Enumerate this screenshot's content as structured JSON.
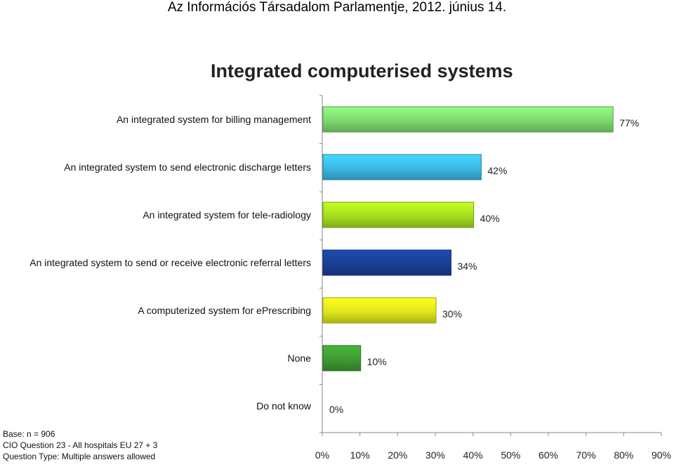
{
  "header": {
    "title": "Az Információs Társadalom Parlamentje, 2012. június 14."
  },
  "chart_data": {
    "type": "bar",
    "orientation": "horizontal",
    "title": "Integrated computerised systems",
    "categories": [
      "An integrated system for billing management",
      "An integrated system to send electronic discharge letters",
      "An integrated system for tele-radiology",
      "An integrated system to send or receive electronic referral letters",
      "A computerized system for ePrescribing",
      "None",
      "Do not know"
    ],
    "values": [
      77,
      42,
      40,
      34,
      30,
      10,
      0
    ],
    "value_labels": [
      "77%",
      "42%",
      "40%",
      "34%",
      "30%",
      "10%",
      "0%"
    ],
    "bar_colors": [
      "#7ed96f",
      "#3ab8e4",
      "#a6dd1e",
      "#1a3f96",
      "#dfe61c",
      "#3f9a32",
      "#cccccc"
    ],
    "xlim": [
      0,
      90
    ],
    "xticks": [
      "0%",
      "10%",
      "20%",
      "30%",
      "40%",
      "50%",
      "60%",
      "70%",
      "80%",
      "90%"
    ],
    "grid": false,
    "legend": "none"
  },
  "footnotes": {
    "base": "Base: n = 906",
    "question": "CIO Question 23 - All hospitals EU 27 + 3",
    "type": "Question Type: Multiple answers allowed"
  }
}
